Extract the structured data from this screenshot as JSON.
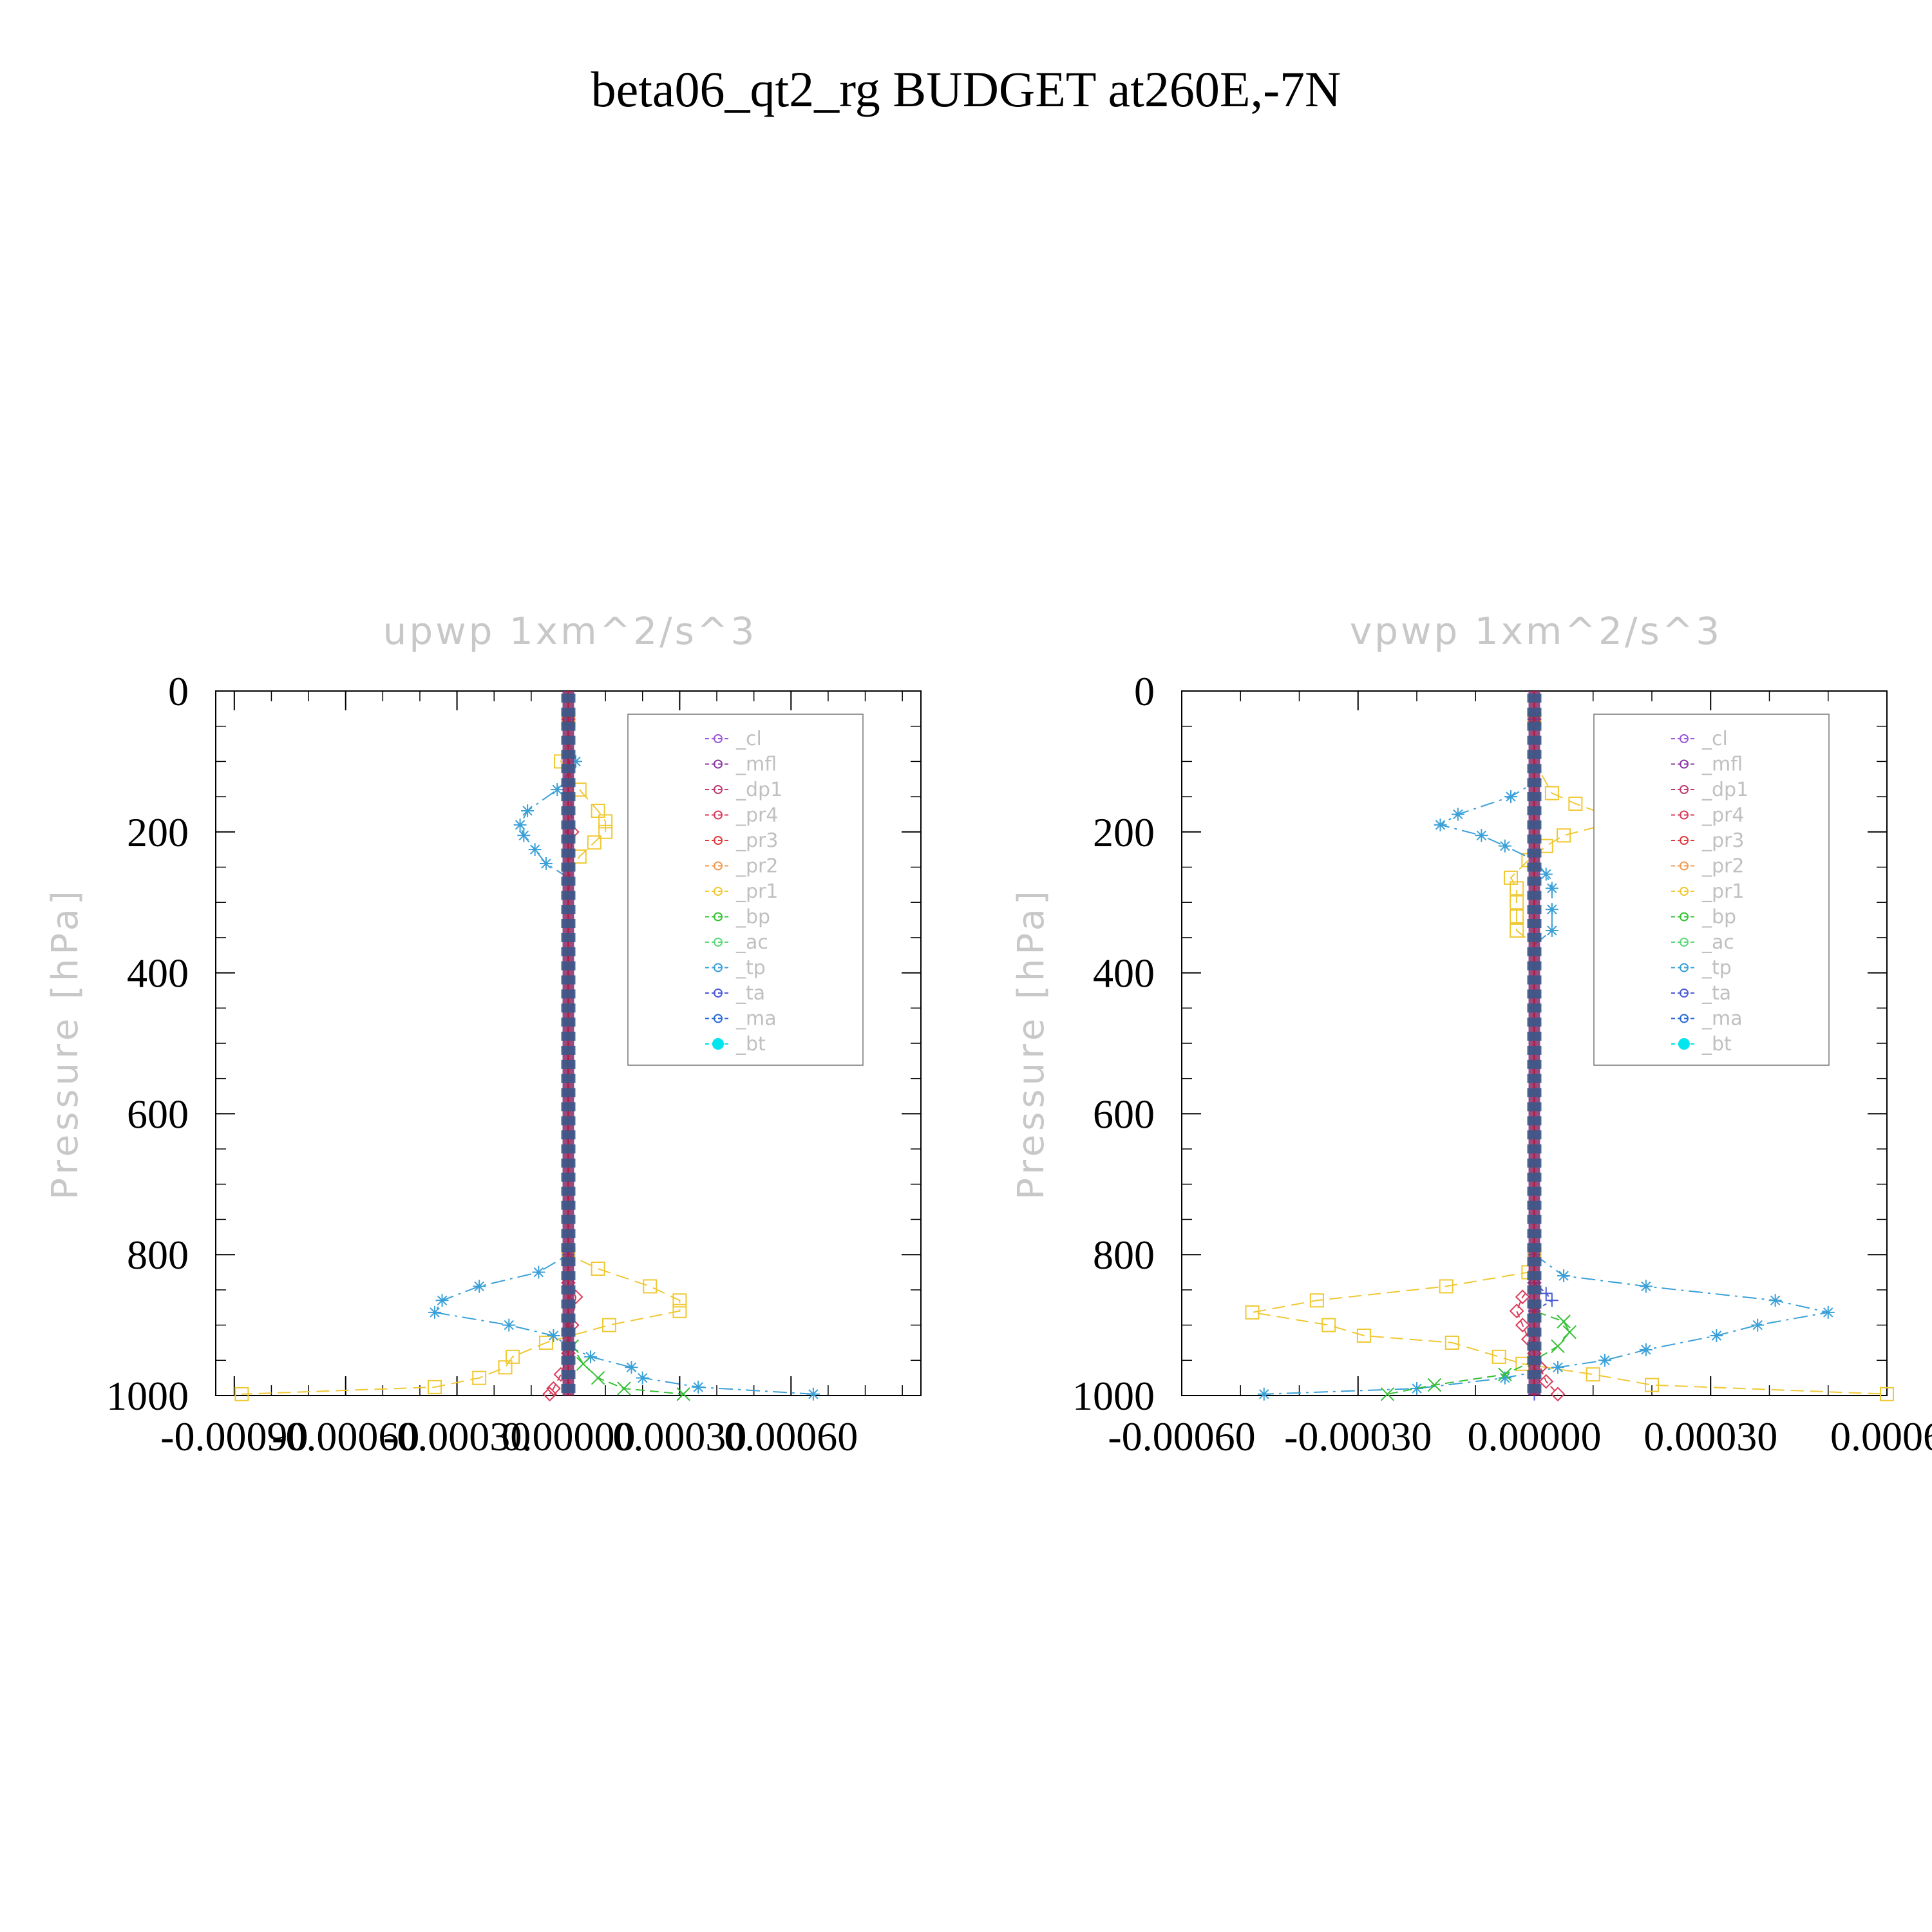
{
  "figure_title": "beta06_qt2_rg  BUDGET at260E,-7N",
  "chart_data": [
    {
      "type": "line",
      "title": "upwp    1xm^2/s^3",
      "ylabel": "Pressure  [hPa]",
      "xlabel": "",
      "xlim": [
        -0.00095,
        0.00095
      ],
      "ylim": [
        1000,
        0
      ],
      "xticks": [
        -0.0009,
        -0.0006,
        -0.0003,
        0.0,
        0.0003,
        0.0006
      ],
      "xtick_labels": [
        "-0.00090",
        "-0.00060",
        "-0.00030",
        "0.00000",
        "0.00030",
        "0.00060"
      ],
      "yticks": [
        0,
        200,
        400,
        600,
        800,
        1000
      ],
      "ytick_labels": [
        "0",
        "200",
        "400",
        "600",
        "800",
        "1000"
      ],
      "legend": {
        "placement": "top-right",
        "entries": [
          "_cl",
          "_mfl",
          "_dp1",
          "_pr4",
          "_pr3",
          "_pr2",
          "_pr1",
          "_bp",
          "_ac",
          "_tp",
          "_ta",
          "_ma",
          "_bt"
        ]
      },
      "series": [
        {
          "name": "_pr1",
          "color": "#f0c832",
          "marker": "square",
          "dash": "20,10",
          "points": [
            [
              0,
              40
            ],
            [
              0,
              70
            ],
            [
              -2e-05,
              100
            ],
            [
              3e-05,
              140
            ],
            [
              8e-05,
              170
            ],
            [
              0.0001,
              185
            ],
            [
              0.0001,
              200
            ],
            [
              7e-05,
              215
            ],
            [
              3e-05,
              235
            ],
            [
              0,
              260
            ],
            [
              0,
              300
            ],
            [
              0,
              800
            ],
            [
              8e-05,
              820
            ],
            [
              0.00022,
              845
            ],
            [
              0.0003,
              865
            ],
            [
              0.0003,
              880
            ],
            [
              0.00011,
              900
            ],
            [
              -6e-05,
              925
            ],
            [
              -0.00015,
              945
            ],
            [
              -0.00017,
              960
            ],
            [
              -0.00024,
              975
            ],
            [
              -0.00036,
              988
            ],
            [
              -0.00088,
              998
            ]
          ]
        },
        {
          "name": "_tp",
          "color": "#3aa0d8",
          "marker": "star",
          "dash": "22,8,4,8",
          "points": [
            [
              0,
              40
            ],
            [
              0,
              70
            ],
            [
              2e-05,
              100
            ],
            [
              -3e-05,
              140
            ],
            [
              -0.00011,
              170
            ],
            [
              -0.00013,
              190
            ],
            [
              -0.00012,
              205
            ],
            [
              -9e-05,
              225
            ],
            [
              -6e-05,
              245
            ],
            [
              0,
              265
            ],
            [
              0,
              300
            ],
            [
              0,
              800
            ],
            [
              -8e-05,
              825
            ],
            [
              -0.00024,
              845
            ],
            [
              -0.00034,
              865
            ],
            [
              -0.00036,
              882
            ],
            [
              -0.00016,
              900
            ],
            [
              -4e-05,
              915
            ],
            [
              0,
              930
            ],
            [
              6e-05,
              945
            ],
            [
              0.00017,
              960
            ],
            [
              0.0002,
              975
            ],
            [
              0.00035,
              988
            ],
            [
              0.00066,
              998
            ]
          ]
        },
        {
          "name": "_bp",
          "color": "#34c034",
          "marker": "x",
          "dash": "14,8",
          "points": [
            [
              0,
              40
            ],
            [
              0,
              900
            ],
            [
              1e-05,
              930
            ],
            [
              4e-05,
              955
            ],
            [
              8e-05,
              975
            ],
            [
              0.00015,
              990
            ],
            [
              0.00031,
              998
            ]
          ]
        },
        {
          "name": "_pr4",
          "color": "#dc3a5a",
          "marker": "diamond",
          "dash": "10,6",
          "points": [
            [
              0,
              40
            ],
            [
              1e-05,
              200
            ],
            [
              0,
              300
            ],
            [
              0,
              840
            ],
            [
              2e-05,
              860
            ],
            [
              1e-05,
              900
            ],
            [
              0,
              940
            ],
            [
              -2e-05,
              970
            ],
            [
              -4e-05,
              990
            ],
            [
              -5e-05,
              998
            ]
          ]
        }
      ]
    },
    {
      "type": "line",
      "title": "vpwp    1xm^2/s^3",
      "ylabel": "Pressure  [hPa]",
      "xlabel": "",
      "xlim": [
        -0.0006,
        0.0006
      ],
      "ylim": [
        1000,
        0
      ],
      "xticks": [
        -0.0006,
        -0.0003,
        0.0,
        0.0003,
        0.0006
      ],
      "xtick_labels": [
        "-0.00060",
        "-0.00030",
        "0.00000",
        "0.00030",
        "0.0006"
      ],
      "yticks": [
        0,
        200,
        400,
        600,
        800,
        1000
      ],
      "ytick_labels": [
        "0",
        "200",
        "400",
        "600",
        "800",
        "1000"
      ],
      "legend": {
        "placement": "top-right",
        "entries": [
          "_cl",
          "_mfl",
          "_dp1",
          "_pr4",
          "_pr3",
          "_pr2",
          "_pr1",
          "_bp",
          "_ac",
          "_tp",
          "_ta",
          "_ma",
          "_bt"
        ]
      },
      "series": [
        {
          "name": "_pr1",
          "color": "#f0c832",
          "marker": "square",
          "dash": "20,10",
          "points": [
            [
              0,
              40
            ],
            [
              0,
              100
            ],
            [
              3e-05,
              145
            ],
            [
              7e-05,
              160
            ],
            [
              0.00012,
              175
            ],
            [
              0.00012,
              190
            ],
            [
              5e-05,
              205
            ],
            [
              2e-05,
              220
            ],
            [
              -1e-05,
              240
            ],
            [
              -4e-05,
              265
            ],
            [
              -3e-05,
              280
            ],
            [
              -3e-05,
              300
            ],
            [
              -3e-05,
              320
            ],
            [
              -3e-05,
              340
            ],
            [
              0,
              360
            ],
            [
              0,
              800
            ],
            [
              -1e-05,
              825
            ],
            [
              -0.00015,
              845
            ],
            [
              -0.00037,
              865
            ],
            [
              -0.00048,
              882
            ],
            [
              -0.00035,
              900
            ],
            [
              -0.00029,
              915
            ],
            [
              -0.00014,
              925
            ],
            [
              -6e-05,
              945
            ],
            [
              -2e-05,
              955
            ],
            [
              0.0001,
              970
            ],
            [
              0.0002,
              985
            ],
            [
              0.0006,
              998
            ]
          ]
        },
        {
          "name": "_tp",
          "color": "#3aa0d8",
          "marker": "star",
          "dash": "22,8,4,8",
          "points": [
            [
              0,
              40
            ],
            [
              0,
              130
            ],
            [
              -4e-05,
              150
            ],
            [
              -0.00013,
              175
            ],
            [
              -0.00016,
              190
            ],
            [
              -9e-05,
              205
            ],
            [
              -5e-05,
              220
            ],
            [
              0,
              240
            ],
            [
              2e-05,
              260
            ],
            [
              3e-05,
              280
            ],
            [
              3e-05,
              310
            ],
            [
              3e-05,
              340
            ],
            [
              0,
              360
            ],
            [
              0,
              800
            ],
            [
              5e-05,
              830
            ],
            [
              0.00019,
              845
            ],
            [
              0.00041,
              865
            ],
            [
              0.0005,
              882
            ],
            [
              0.00038,
              900
            ],
            [
              0.00031,
              915
            ],
            [
              0.00019,
              935
            ],
            [
              0.00012,
              950
            ],
            [
              4e-05,
              960
            ],
            [
              -5e-05,
              975
            ],
            [
              -0.0002,
              990
            ],
            [
              -0.00046,
              998
            ]
          ]
        },
        {
          "name": "_bp",
          "color": "#34c034",
          "marker": "x",
          "dash": "14,8",
          "points": [
            [
              0,
              40
            ],
            [
              0,
              880
            ],
            [
              5e-05,
              895
            ],
            [
              6e-05,
              910
            ],
            [
              4e-05,
              930
            ],
            [
              0,
              950
            ],
            [
              -5e-05,
              970
            ],
            [
              -0.00017,
              985
            ],
            [
              -0.00025,
              998
            ]
          ]
        },
        {
          "name": "_pr4",
          "color": "#dc3a5a",
          "marker": "diamond",
          "dash": "10,6",
          "points": [
            [
              0,
              40
            ],
            [
              0,
              840
            ],
            [
              -2e-05,
              860
            ],
            [
              -3e-05,
              880
            ],
            [
              -2e-05,
              900
            ],
            [
              -1e-05,
              920
            ],
            [
              0,
              940
            ],
            [
              1e-05,
              960
            ],
            [
              2e-05,
              980
            ],
            [
              4e-05,
              998
            ]
          ]
        },
        {
          "name": "_ta",
          "color": "#4a5ad8",
          "marker": "plus",
          "dash": "6,6",
          "points": [
            [
              0,
              40
            ],
            [
              0,
              840
            ],
            [
              2e-05,
              855
            ],
            [
              3e-05,
              865
            ],
            [
              0,
              880
            ],
            [
              0,
              998
            ]
          ]
        }
      ]
    }
  ]
}
